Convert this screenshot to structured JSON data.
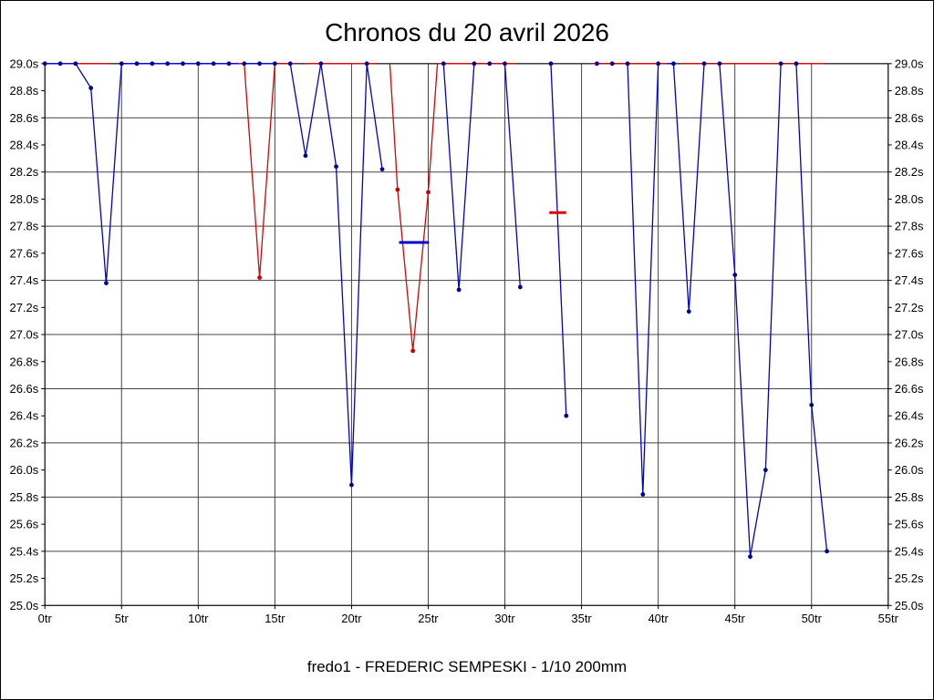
{
  "chart_data": {
    "type": "line",
    "title": "Chronos du 20 avril 2026",
    "caption": "fredo1 - FREDERIC SEMPESKI - 1/10 200mm",
    "xlabel": "",
    "ylabel": "",
    "xlim": [
      0,
      55
    ],
    "ylim": [
      25.0,
      29.0
    ],
    "x_tick_step": 5,
    "y_tick_step": 0.2,
    "y_grid_every": 2,
    "x_ticks": [
      "0tr",
      "5tr",
      "10tr",
      "15tr",
      "20tr",
      "25tr",
      "30tr",
      "35tr",
      "40tr",
      "45tr",
      "50tr",
      "55tr"
    ],
    "y_ticks": [
      "29.0s",
      "28.8s",
      "28.6s",
      "28.4s",
      "28.2s",
      "28.0s",
      "27.8s",
      "27.6s",
      "27.4s",
      "27.2s",
      "27.0s",
      "26.8s",
      "26.6s",
      "26.4s",
      "26.2s",
      "26.0s",
      "25.8s",
      "25.6s",
      "25.4s",
      "25.2s",
      "25.0s"
    ],
    "colors": {
      "blue": "#0000CC",
      "blue_dot": "#000099",
      "red": "#E00000",
      "red_dot": "#CC0000",
      "grid": "#444444",
      "axis": "#000000",
      "background": "#FFFFFF"
    },
    "series": [
      {
        "name": "blue-laps",
        "color": "#0000CC",
        "dot_color": "#000099",
        "points": [
          [
            0,
            29.0
          ],
          [
            1,
            29.0
          ],
          [
            2,
            29.0
          ],
          [
            3,
            28.82
          ],
          [
            4,
            27.38
          ],
          [
            5,
            29.0
          ],
          [
            6,
            29.0
          ],
          [
            7,
            29.0
          ],
          [
            8,
            29.0
          ],
          [
            9,
            29.0
          ],
          [
            10,
            29.0
          ],
          [
            11,
            29.0
          ],
          [
            12,
            29.0
          ],
          [
            13,
            29.0
          ],
          [
            14,
            29.0
          ],
          [
            15,
            29.0
          ],
          [
            16,
            29.0
          ],
          [
            17,
            28.32
          ],
          [
            18,
            29.0
          ],
          [
            19,
            28.24
          ],
          [
            20,
            25.89
          ],
          [
            21,
            29.0
          ],
          [
            22,
            28.22
          ],
          [
            26,
            29.0
          ],
          [
            27,
            27.33
          ],
          [
            28,
            29.0
          ],
          [
            29,
            29.0
          ],
          [
            30,
            29.0
          ],
          [
            31,
            27.35
          ],
          [
            33,
            29.0
          ],
          [
            34,
            26.4
          ],
          [
            36,
            29.0
          ],
          [
            37,
            29.0
          ],
          [
            38,
            29.0
          ],
          [
            39,
            25.82
          ],
          [
            40,
            29.0
          ],
          [
            41,
            29.0
          ],
          [
            42,
            27.17
          ],
          [
            43,
            29.0
          ],
          [
            44,
            29.0
          ],
          [
            45,
            27.44
          ],
          [
            46,
            25.36
          ],
          [
            47,
            26.0
          ],
          [
            48,
            29.0
          ],
          [
            49,
            29.0
          ],
          [
            50,
            26.48
          ],
          [
            51,
            25.4
          ]
        ],
        "runs": [
          [
            [
              0,
              29.0
            ],
            [
              1,
              29.0
            ],
            [
              2,
              29.0
            ],
            [
              3,
              28.82
            ],
            [
              4,
              27.38
            ],
            [
              5,
              29.0
            ],
            [
              6,
              29.0
            ],
            [
              7,
              29.0
            ],
            [
              8,
              29.0
            ],
            [
              9,
              29.0
            ],
            [
              10,
              29.0
            ],
            [
              11,
              29.0
            ],
            [
              12,
              29.0
            ],
            [
              13,
              29.0
            ],
            [
              14,
              29.0
            ],
            [
              15,
              29.0
            ],
            [
              16,
              29.0
            ],
            [
              17,
              28.32
            ],
            [
              18,
              29.0
            ],
            [
              19,
              28.24
            ],
            [
              20,
              25.89
            ],
            [
              21,
              29.0
            ],
            [
              22,
              28.22
            ]
          ],
          [
            [
              26,
              29.0
            ],
            [
              27,
              27.33
            ],
            [
              28,
              29.0
            ],
            [
              29,
              29.0
            ],
            [
              30,
              29.0
            ],
            [
              31,
              27.35
            ]
          ],
          [
            [
              33,
              29.0
            ],
            [
              34,
              26.4
            ]
          ],
          [
            [
              36,
              29.0
            ],
            [
              37,
              29.0
            ],
            [
              38,
              29.0
            ],
            [
              39,
              25.82
            ],
            [
              40,
              29.0
            ],
            [
              41,
              29.0
            ],
            [
              42,
              27.17
            ],
            [
              43,
              29.0
            ],
            [
              44,
              29.0
            ],
            [
              45,
              27.44
            ],
            [
              46,
              25.36
            ],
            [
              47,
              26.0
            ],
            [
              48,
              29.0
            ],
            [
              49,
              29.0
            ],
            [
              50,
              26.48
            ],
            [
              51,
              25.4
            ]
          ]
        ]
      },
      {
        "name": "red-laps",
        "color": "#E00000",
        "dot_color": "#CC0000",
        "points": [
          [
            14,
            27.42
          ],
          [
            23,
            28.07
          ],
          [
            24,
            26.88
          ],
          [
            25,
            28.05
          ]
        ],
        "runs": [
          [
            [
              1.9,
              29.0
            ],
            [
              4.2,
              29.0
            ]
          ],
          [
            [
              12.6,
              29.0
            ],
            [
              13,
              29.0
            ],
            [
              14,
              27.42
            ],
            [
              15,
              29.0
            ],
            [
              16.3,
              29.0
            ]
          ],
          [
            [
              17,
              29.0
            ],
            [
              21.6,
              29.0
            ]
          ],
          [
            [
              22.5,
              29.0
            ],
            [
              23,
              28.07
            ],
            [
              24,
              26.88
            ],
            [
              25,
              28.05
            ],
            [
              25.6,
              29.0
            ],
            [
              30.7,
              29.0
            ]
          ],
          [
            [
              35.6,
              29.0
            ],
            [
              40.6,
              29.0
            ]
          ],
          [
            [
              41.5,
              29.0
            ],
            [
              50.9,
              29.0
            ]
          ]
        ]
      }
    ],
    "markers": [
      {
        "name": "blue-average-marker",
        "color": "#0000CC",
        "x_start": 23.1,
        "x_end": 25.05,
        "y": 27.68
      },
      {
        "name": "red-average-marker",
        "color": "#E00000",
        "x_start": 32.9,
        "x_end": 34.0,
        "y": 27.9
      }
    ]
  }
}
